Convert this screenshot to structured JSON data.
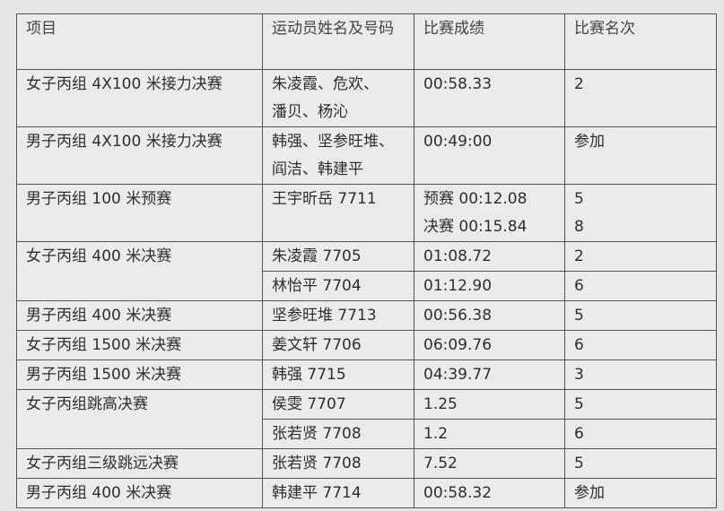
{
  "headers": [
    "项目",
    "运动员姓名及号码",
    "比赛成绩",
    "比赛名次"
  ],
  "rows": [
    {
      "event": "女子丙组 4X100 米接力决赛",
      "athlete": "朱凌霞、危欢、\n潘贝、杨沁",
      "result": "00:58.33",
      "rank": "2"
    },
    {
      "event": "男子丙组 4X100 米接力决赛",
      "athlete": "韩强、坚参旺堆、\n阎洁、韩建平",
      "result": "00:49:00",
      "rank": "参加"
    },
    {
      "event": "男子丙组 100 米预赛",
      "athlete": "王宇昕岳 7711",
      "result": "预赛 00:12.08\n决赛 00:15.84",
      "rank": "5\n8"
    },
    {
      "event": "女子丙组 400 米决赛",
      "athlete": "朱凌霞 7705",
      "result": "01:08.72",
      "rank": "2"
    },
    {
      "athlete": "林怡平 7704",
      "result": "01:12.90",
      "rank": "6"
    },
    {
      "event": "男子丙组 400 米决赛",
      "athlete": "坚参旺堆 7713",
      "result": "00:56.38",
      "rank": "5"
    },
    {
      "event": "女子丙组 1500 米决赛",
      "athlete": "姜文轩 7706",
      "result": "06:09.76",
      "rank": "6"
    },
    {
      "event": "男子丙组 1500 米决赛",
      "athlete": "韩强 7715",
      "result": "04:39.77",
      "rank": "3"
    },
    {
      "event": "女子丙组跳高决赛",
      "athlete": "侯雯 7707",
      "result": "1.25",
      "rank": "5"
    },
    {
      "athlete": "张若贤 7708",
      "result": "1.2",
      "rank": "6"
    },
    {
      "event": "女子丙组三级跳远决赛",
      "athlete": "张若贤 7708",
      "result": "7.52",
      "rank": "5"
    },
    {
      "event": "男子丙组 400 米决赛",
      "athlete": "韩建平 7714",
      "result": "00:58.32",
      "rank": "参加"
    }
  ]
}
